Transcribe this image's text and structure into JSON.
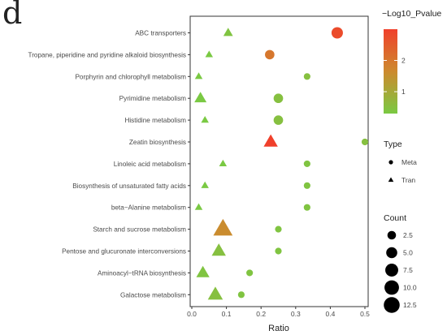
{
  "panel_label": "d",
  "chart_data": {
    "type": "scatter",
    "xlabel": "Ratio",
    "xlim": [
      0,
      0.5
    ],
    "xticks": [
      "0.0",
      "0.1",
      "0.2",
      "0.3",
      "0.4",
      "0.5"
    ],
    "grid": false,
    "categories": [
      "ABC transporters",
      "Tropane, piperidine and pyridine alkaloid biosynthesis",
      "Porphyrin and chlorophyll metabolism",
      "Pyrimidine metabolism",
      "Histidine metabolism",
      "Zeatin biosynthesis",
      "Linoleic acid metabolism",
      "Biosynthesis of unsaturated fatty acids",
      "beta−Alanine metabolism",
      "Starch and sucrose metabolism",
      "Pentose and glucuronate interconversions",
      "Aminoacyl−tRNA biosynthesis",
      "Galactose metabolism"
    ],
    "points": [
      {
        "pathway": "ABC transporters",
        "type": "Tran",
        "ratio": 0.105,
        "count": 2,
        "log10p": 0.4
      },
      {
        "pathway": "ABC transporters",
        "type": "Meta",
        "ratio": 0.42,
        "count": 5,
        "log10p": 2.8
      },
      {
        "pathway": "Tropane, piperidine and pyridine alkaloid biosynthesis",
        "type": "Tran",
        "ratio": 0.05,
        "count": 1,
        "log10p": 0.3
      },
      {
        "pathway": "Tropane, piperidine and pyridine alkaloid biosynthesis",
        "type": "Meta",
        "ratio": 0.225,
        "count": 3,
        "log10p": 2.0
      },
      {
        "pathway": "Porphyrin and chlorophyll metabolism",
        "type": "Tran",
        "ratio": 0.02,
        "count": 1,
        "log10p": 0.3
      },
      {
        "pathway": "Porphyrin and chlorophyll metabolism",
        "type": "Meta",
        "ratio": 0.333,
        "count": 1,
        "log10p": 0.5
      },
      {
        "pathway": "Pyrimidine metabolism",
        "type": "Tran",
        "ratio": 0.025,
        "count": 4,
        "log10p": 0.3
      },
      {
        "pathway": "Pyrimidine metabolism",
        "type": "Meta",
        "ratio": 0.25,
        "count": 3,
        "log10p": 0.5
      },
      {
        "pathway": "Histidine metabolism",
        "type": "Tran",
        "ratio": 0.038,
        "count": 1,
        "log10p": 0.3
      },
      {
        "pathway": "Histidine metabolism",
        "type": "Meta",
        "ratio": 0.25,
        "count": 3,
        "log10p": 0.5
      },
      {
        "pathway": "Zeatin biosynthesis",
        "type": "Tran",
        "ratio": 0.228,
        "count": 6,
        "log10p": 3.0
      },
      {
        "pathway": "Zeatin biosynthesis",
        "type": "Meta",
        "ratio": 0.5,
        "count": 1,
        "log10p": 0.5
      },
      {
        "pathway": "Linoleic acid metabolism",
        "type": "Tran",
        "ratio": 0.09,
        "count": 1,
        "log10p": 0.3
      },
      {
        "pathway": "Linoleic acid metabolism",
        "type": "Meta",
        "ratio": 0.333,
        "count": 1,
        "log10p": 0.4
      },
      {
        "pathway": "Biosynthesis of unsaturated fatty acids",
        "type": "Tran",
        "ratio": 0.038,
        "count": 1,
        "log10p": 0.3
      },
      {
        "pathway": "Biosynthesis of unsaturated fatty acids",
        "type": "Meta",
        "ratio": 0.333,
        "count": 1,
        "log10p": 0.4
      },
      {
        "pathway": "beta−Alanine metabolism",
        "type": "Tran",
        "ratio": 0.02,
        "count": 1,
        "log10p": 0.3
      },
      {
        "pathway": "beta−Alanine metabolism",
        "type": "Meta",
        "ratio": 0.333,
        "count": 1,
        "log10p": 0.4
      },
      {
        "pathway": "Starch and sucrose metabolism",
        "type": "Tran",
        "ratio": 0.09,
        "count": 13,
        "log10p": 1.6
      },
      {
        "pathway": "Starch and sucrose metabolism",
        "type": "Meta",
        "ratio": 0.25,
        "count": 1,
        "log10p": 0.4
      },
      {
        "pathway": "Pentose and glucuronate interconversions",
        "type": "Tran",
        "ratio": 0.078,
        "count": 6,
        "log10p": 0.5
      },
      {
        "pathway": "Pentose and glucuronate interconversions",
        "type": "Meta",
        "ratio": 0.25,
        "count": 1,
        "log10p": 0.4
      },
      {
        "pathway": "Aminoacyl−tRNA biosynthesis",
        "type": "Tran",
        "ratio": 0.032,
        "count": 5,
        "log10p": 0.4
      },
      {
        "pathway": "Aminoacyl−tRNA biosynthesis",
        "type": "Meta",
        "ratio": 0.167,
        "count": 1,
        "log10p": 0.4
      },
      {
        "pathway": "Galactose metabolism",
        "type": "Tran",
        "ratio": 0.068,
        "count": 7,
        "log10p": 0.5
      },
      {
        "pathway": "Galactose metabolism",
        "type": "Meta",
        "ratio": 0.143,
        "count": 1,
        "log10p": 0.4
      }
    ],
    "color_scale": {
      "title": "−Log10_Pvalue",
      "range": [
        0.3,
        3.0
      ],
      "ticks": [
        "1",
        "2"
      ],
      "colors": [
        "#7ac943",
        "#cd8a2e",
        "#f0402b"
      ]
    },
    "shape_legend": {
      "title": "Type",
      "items": [
        {
          "label": "Meta",
          "shape": "circle"
        },
        {
          "label": "Tran",
          "shape": "triangle"
        }
      ]
    },
    "size_legend": {
      "title": "Count",
      "values": [
        2.5,
        5.0,
        7.5,
        10.0,
        12.5
      ],
      "labels": [
        "2.5",
        "5.0",
        "7.5",
        "10.0",
        "12.5"
      ]
    }
  }
}
